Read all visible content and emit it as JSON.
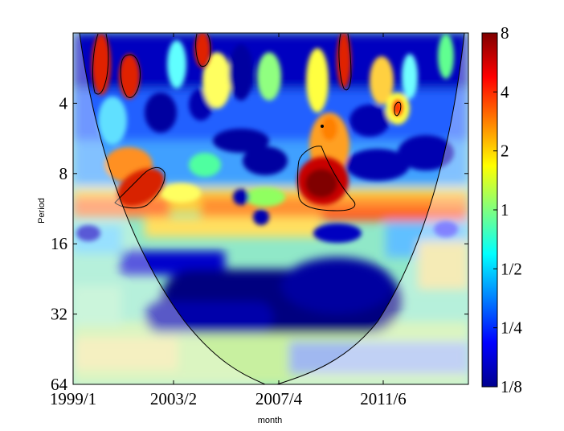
{
  "chart_data": {
    "type": "heatmap",
    "title": "",
    "xlabel": "month",
    "ylabel": "Period",
    "x_ticks": [
      "1999/1",
      "2003/2",
      "2007/4",
      "2011/6"
    ],
    "y_scale": "log2",
    "y_reversed": true,
    "y_ticks": [
      4,
      8,
      16,
      32,
      64
    ],
    "ylim": [
      2,
      64
    ],
    "colorbar": {
      "scale": "log2",
      "ticks": [
        "8",
        "4",
        "2",
        "1",
        "1/2",
        "1/4",
        "1/8"
      ],
      "range": [
        0.125,
        8
      ],
      "colormap": "jet"
    },
    "significance_contours": [
      {
        "x_center": "1999/12",
        "period_range": [
          2,
          4
        ]
      },
      {
        "x_center": "2000/11",
        "period_range": [
          2.5,
          4
        ]
      },
      {
        "x_center": "2004/1",
        "period_range": [
          2,
          3
        ]
      },
      {
        "x_center": "2009/3",
        "period_range": [
          2,
          3.5
        ]
      },
      {
        "x_center": "2011/10",
        "period_range": [
          4,
          5
        ]
      },
      {
        "x_center": "2001/9",
        "period_range": [
          7.5,
          11.5
        ]
      },
      {
        "x_center": "2008/7",
        "period_range": [
          6.5,
          11.5
        ]
      }
    ],
    "cone_of_influence": true,
    "grid": false
  }
}
